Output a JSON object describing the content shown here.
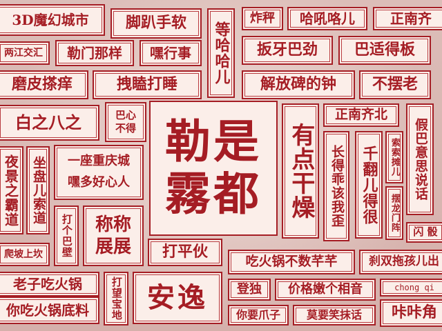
{
  "colors": {
    "accent_red": "#a51d24",
    "tile_bg": "#fbeee9",
    "dark_text": "#5a2b27",
    "wall": "#d7b6b1"
  },
  "center": {
    "main": "勒是霧都"
  },
  "tiles": {
    "t01": "3D魔幻城市",
    "t02": "脚趴手软",
    "t03": "等哈哈儿",
    "t04": "炸秤",
    "t05": "哈吼咯儿",
    "t06": "正南齐",
    "t07": "两江交汇",
    "t08": "勒门那样",
    "t09": "嘿行事",
    "t10": "扳牙巴劲",
    "t11": "巴适得板",
    "t12": "磨皮搽痒",
    "t13": "拽瞌打睡",
    "t14": "解放碑的钟",
    "t15": "不摆老",
    "t16": "白之八之",
    "t17": "巴心不得",
    "t18": "有点干燥",
    "t19": "正南齐北",
    "t20": "假巴意思说话",
    "t21": "夜景之霸道",
    "t22": "坐盘儿索道",
    "t23": "一座重庆城",
    "t24": "嘿多好心人",
    "t25": "长得乖该我歪",
    "t26": "千翻儿得很",
    "t27": "索索摊儿",
    "t28": "摆龙门阵",
    "t29": "打个巴壁",
    "t30": "称称展展",
    "t31": "打平伙",
    "t32": "闪 骰",
    "t33": "爬坡上坎",
    "t34": "吃火锅不数芊芊",
    "t35": "刹双拖孩儿出",
    "t36": "老子吃火锅",
    "t37": "你吃火锅底料",
    "t38": "打望宝地",
    "t39": "安逸",
    "t40": "登独",
    "t41": "价格嫩个相音",
    "t42": "chong qi",
    "t43": "你要爪子",
    "t44": "莫要笑抹话",
    "t45": "咔咔角"
  }
}
